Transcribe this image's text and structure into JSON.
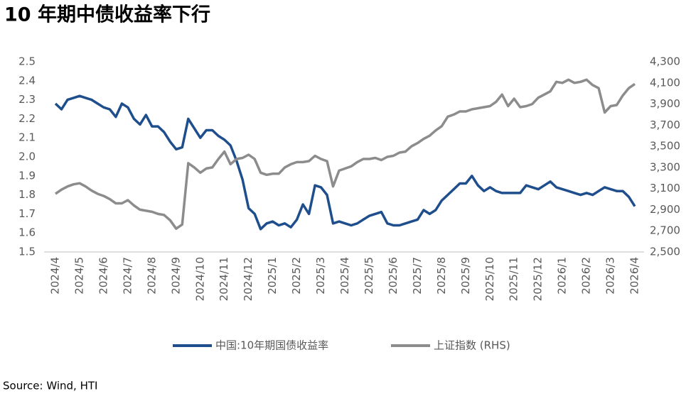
{
  "chart_data": {
    "type": "line",
    "title": "10 年期中债收益率下行",
    "source": "Source: Wind, HTI",
    "categories": [
      "2024/4",
      null,
      null,
      null,
      "2024/5",
      null,
      null,
      null,
      "2024/6",
      null,
      null,
      null,
      "2024/7",
      null,
      null,
      null,
      "2024/8",
      null,
      null,
      null,
      "2024/9",
      null,
      null,
      null,
      "2024/10",
      null,
      null,
      null,
      "2024/11",
      null,
      null,
      null,
      "2024/12",
      null,
      null,
      null,
      "2025/1",
      null,
      null,
      null,
      "2025/2",
      null,
      null,
      null,
      "2025/3",
      null,
      null,
      null,
      "2025/4",
      null,
      null,
      null,
      "2025/5",
      null,
      null,
      null,
      "2025/6",
      null,
      null,
      null,
      "2025/7",
      null,
      null,
      null,
      "2025/8",
      null,
      null,
      null,
      "2025/9",
      null,
      null,
      null,
      "2025/10",
      null,
      null,
      null,
      "2025/11",
      null,
      null,
      null,
      "2025/12",
      null,
      null,
      null,
      "2026/1",
      null,
      null,
      null,
      "2026/2",
      null,
      null,
      null,
      "2026/3",
      null,
      null,
      null,
      "2026/4"
    ],
    "series": [
      {
        "name": "中国:10年期国债收益率",
        "color": "#1f4e8c",
        "axis": "y",
        "values": [
          2.28,
          2.25,
          2.3,
          2.31,
          2.32,
          2.31,
          2.3,
          2.28,
          2.26,
          2.25,
          2.21,
          2.28,
          2.26,
          2.2,
          2.17,
          2.22,
          2.16,
          2.16,
          2.13,
          2.08,
          2.04,
          2.05,
          2.2,
          2.15,
          2.1,
          2.14,
          2.14,
          2.11,
          2.09,
          2.06,
          1.98,
          1.88,
          1.73,
          1.7,
          1.62,
          1.65,
          1.66,
          1.64,
          1.65,
          1.63,
          1.67,
          1.75,
          1.7,
          1.85,
          1.84,
          1.8,
          1.65,
          1.66,
          1.65,
          1.64,
          1.65,
          1.67,
          1.69,
          1.7,
          1.71,
          1.65,
          1.64,
          1.64,
          1.65,
          1.66,
          1.67,
          1.72,
          1.7,
          1.72,
          1.77,
          1.8,
          1.83,
          1.86,
          1.86,
          1.9,
          1.85,
          1.82,
          1.84,
          1.82,
          1.81,
          1.81,
          1.81,
          1.81,
          1.85,
          1.84,
          1.83,
          1.85,
          1.87,
          1.84,
          1.83,
          1.82,
          1.81,
          1.8,
          1.81,
          1.8,
          1.82,
          1.84,
          1.83,
          1.82,
          1.82,
          1.79,
          1.74
        ]
      },
      {
        "name": "上证指数 (RHS)",
        "color": "#8c8c8c",
        "axis": "y2",
        "values": [
          3050,
          3090,
          3120,
          3140,
          3150,
          3120,
          3080,
          3050,
          3030,
          3000,
          2960,
          2960,
          2990,
          2940,
          2900,
          2890,
          2880,
          2860,
          2850,
          2800,
          2720,
          2760,
          3340,
          3300,
          3250,
          3290,
          3300,
          3380,
          3450,
          3330,
          3380,
          3390,
          3420,
          3380,
          3250,
          3230,
          3240,
          3240,
          3300,
          3330,
          3350,
          3350,
          3360,
          3410,
          3380,
          3360,
          3120,
          3270,
          3290,
          3310,
          3350,
          3380,
          3380,
          3390,
          3370,
          3400,
          3410,
          3440,
          3450,
          3500,
          3530,
          3570,
          3600,
          3650,
          3690,
          3780,
          3800,
          3830,
          3830,
          3850,
          3860,
          3870,
          3880,
          3920,
          3990,
          3880,
          3950,
          3870,
          3880,
          3900,
          3960,
          3990,
          4020,
          4110,
          4100,
          4130,
          4100,
          4110,
          4130,
          4080,
          4050,
          3820,
          3880,
          3890,
          3980,
          4050,
          4090
        ]
      }
    ],
    "ylim": [
      1.5,
      2.5
    ],
    "yticks": [
      1.5,
      1.6,
      1.7,
      1.8,
      1.9,
      {
        "value": 2,
        "label": "2.0"
      },
      2.1,
      2.2,
      2.3,
      2.4,
      2.5
    ],
    "y2lim": [
      2500,
      4300
    ],
    "y2ticks": [
      {
        "value": 2500,
        "label": "2,500"
      },
      {
        "value": 2700,
        "label": "2,700"
      },
      {
        "value": 2900,
        "label": "2,900"
      },
      {
        "value": 3100,
        "label": "3,100"
      },
      {
        "value": 3300,
        "label": "3,300"
      },
      {
        "value": 3500,
        "label": "3,500"
      },
      {
        "value": 3700,
        "label": "3,700"
      },
      {
        "value": 3900,
        "label": "3,900"
      },
      {
        "value": 4100,
        "label": "4,100"
      },
      {
        "value": 4300,
        "label": "4,300"
      }
    ],
    "grid": false
  }
}
